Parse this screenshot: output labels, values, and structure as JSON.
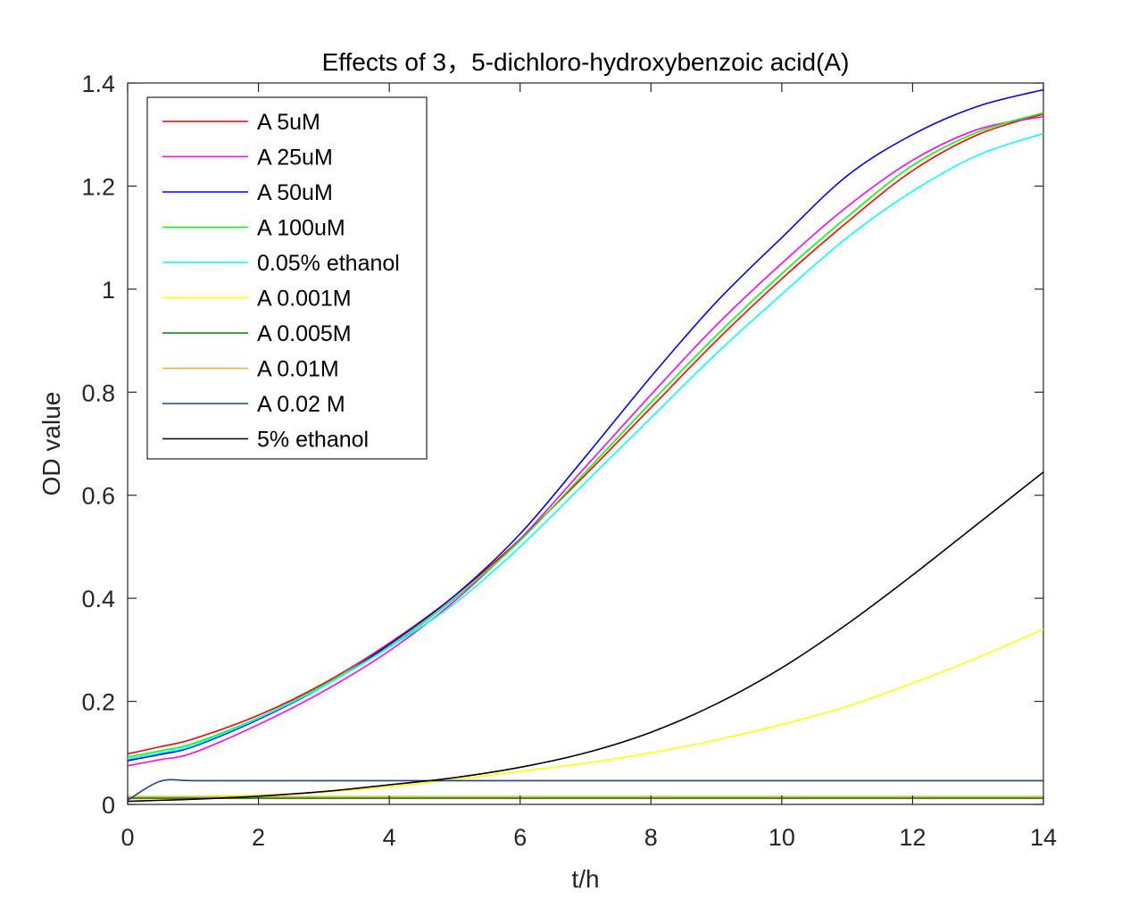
{
  "chart_data": {
    "type": "line",
    "title": "Effects of 3，5-dichloro-hydroxybenzoic acid(A)",
    "xlabel": "t/h",
    "ylabel": "OD value",
    "xlim": [
      0,
      14
    ],
    "ylim": [
      0,
      1.4
    ],
    "xticks": [
      0,
      2,
      4,
      6,
      8,
      10,
      12,
      14
    ],
    "yticks": [
      0,
      0.2,
      0.4,
      0.6,
      0.8,
      1,
      1.2,
      1.4
    ],
    "xtick_labels": [
      "0",
      "2",
      "4",
      "6",
      "8",
      "10",
      "12",
      "14"
    ],
    "ytick_labels": [
      "0",
      "0.2",
      "0.4",
      "0.6",
      "0.8",
      "1",
      "1.2",
      "1.4"
    ],
    "grid": false,
    "legend_position": "top-left",
    "x": [
      0,
      0.5,
      1,
      2,
      3,
      4,
      5,
      6,
      7,
      8,
      9,
      10,
      11,
      12,
      13,
      14
    ],
    "series": [
      {
        "name": "A 5uM",
        "color": "#ff0000",
        "values": [
          0.098,
          0.112,
          0.127,
          0.173,
          0.235,
          0.313,
          0.405,
          0.515,
          0.64,
          0.77,
          0.9,
          1.02,
          1.13,
          1.23,
          1.3,
          1.34
        ]
      },
      {
        "name": "A 25uM",
        "color": "#ff00ff",
        "values": [
          0.075,
          0.087,
          0.1,
          0.155,
          0.22,
          0.298,
          0.395,
          0.515,
          0.655,
          0.795,
          0.93,
          1.05,
          1.16,
          1.25,
          1.31,
          1.335
        ]
      },
      {
        "name": "A 50uM",
        "color": "#0000ff",
        "values": [
          0.085,
          0.097,
          0.112,
          0.165,
          0.23,
          0.31,
          0.405,
          0.525,
          0.675,
          0.83,
          0.975,
          1.1,
          1.22,
          1.3,
          1.355,
          1.387
        ]
      },
      {
        "name": "A 100uM",
        "color": "#00ff00",
        "values": [
          0.092,
          0.104,
          0.118,
          0.168,
          0.232,
          0.306,
          0.4,
          0.512,
          0.645,
          0.78,
          0.91,
          1.03,
          1.14,
          1.24,
          1.305,
          1.342
        ]
      },
      {
        "name": "0.05% ethanol",
        "color": "#00ffff",
        "values": [
          0.088,
          0.1,
          0.114,
          0.167,
          0.23,
          0.305,
          0.39,
          0.5,
          0.625,
          0.75,
          0.875,
          0.99,
          1.1,
          1.19,
          1.26,
          1.302
        ]
      },
      {
        "name": "A 0.001M",
        "color": "#ffff00",
        "values": [
          0.013,
          0.014,
          0.015,
          0.018,
          0.024,
          0.034,
          0.048,
          0.064,
          0.08,
          0.1,
          0.125,
          0.155,
          0.19,
          0.235,
          0.285,
          0.34
        ]
      },
      {
        "name": "A 0.005M",
        "color": "#008000",
        "values": [
          0.012,
          0.012,
          0.012,
          0.012,
          0.012,
          0.012,
          0.012,
          0.012,
          0.012,
          0.012,
          0.012,
          0.012,
          0.012,
          0.012,
          0.012,
          0.012
        ]
      },
      {
        "name": "A 0.01M",
        "color": "#edb120",
        "values": [
          0.015,
          0.015,
          0.015,
          0.015,
          0.015,
          0.015,
          0.015,
          0.015,
          0.015,
          0.015,
          0.015,
          0.015,
          0.015,
          0.015,
          0.015,
          0.015
        ]
      },
      {
        "name": "A 0.02 M",
        "color": "#1f3f99",
        "values": [
          0.008,
          0.045,
          0.046,
          0.046,
          0.046,
          0.046,
          0.046,
          0.046,
          0.046,
          0.046,
          0.046,
          0.046,
          0.046,
          0.046,
          0.046,
          0.046
        ]
      },
      {
        "name": "5% ethanol",
        "color": "#000000",
        "values": [
          0.006,
          0.008,
          0.01,
          0.016,
          0.025,
          0.038,
          0.052,
          0.072,
          0.1,
          0.14,
          0.195,
          0.265,
          0.35,
          0.445,
          0.545,
          0.645
        ]
      }
    ]
  }
}
